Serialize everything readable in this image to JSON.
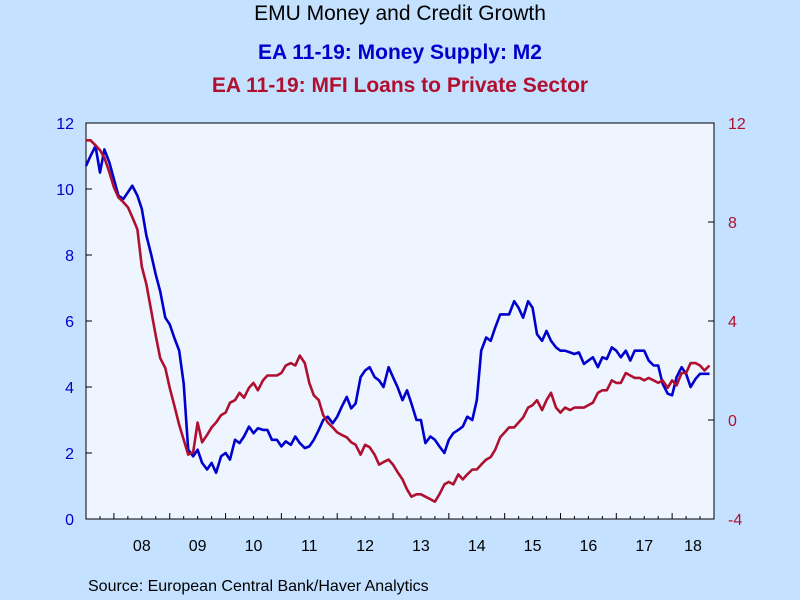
{
  "chart_data": {
    "type": "line",
    "title": "EMU Money and Credit Growth",
    "source": "Source:  European Central Bank/Haver Analytics",
    "colors": {
      "series1": "#0000CC",
      "series2": "#B01030",
      "background": "#C4E1FF",
      "plot_background": "#EEF5FF"
    },
    "x_ticks": [
      "08",
      "09",
      "10",
      "11",
      "12",
      "13",
      "14",
      "15",
      "16",
      "17",
      "18"
    ],
    "x_range": [
      2007.5,
      2018.75
    ],
    "y_left": {
      "ticks": [
        "0",
        "2",
        "4",
        "6",
        "8",
        "10",
        "12"
      ],
      "range": [
        0,
        12
      ]
    },
    "y_right": {
      "ticks": [
        "-4",
        "0",
        "4",
        "8",
        "12"
      ],
      "range": [
        -4,
        12
      ]
    },
    "grid": false,
    "series": [
      {
        "name": "EA 11-19: Money Supply: M2",
        "axis": "left",
        "points": [
          [
            2007.5,
            10.7
          ],
          [
            2007.58,
            11.0
          ],
          [
            2007.67,
            11.3
          ],
          [
            2007.75,
            10.5
          ],
          [
            2007.83,
            11.2
          ],
          [
            2007.92,
            10.8
          ],
          [
            2008.0,
            10.3
          ],
          [
            2008.08,
            9.8
          ],
          [
            2008.17,
            9.7
          ],
          [
            2008.25,
            9.9
          ],
          [
            2008.33,
            10.1
          ],
          [
            2008.42,
            9.8
          ],
          [
            2008.5,
            9.4
          ],
          [
            2008.58,
            8.6
          ],
          [
            2008.67,
            8.0
          ],
          [
            2008.75,
            7.4
          ],
          [
            2008.83,
            6.9
          ],
          [
            2008.92,
            6.1
          ],
          [
            2009.0,
            5.9
          ],
          [
            2009.08,
            5.5
          ],
          [
            2009.17,
            5.1
          ],
          [
            2009.25,
            4.1
          ],
          [
            2009.33,
            2.1
          ],
          [
            2009.42,
            1.9
          ],
          [
            2009.5,
            2.1
          ],
          [
            2009.58,
            1.7
          ],
          [
            2009.67,
            1.5
          ],
          [
            2009.75,
            1.7
          ],
          [
            2009.83,
            1.4
          ],
          [
            2009.92,
            1.9
          ],
          [
            2010.0,
            2.0
          ],
          [
            2010.08,
            1.8
          ],
          [
            2010.17,
            2.4
          ],
          [
            2010.25,
            2.3
          ],
          [
            2010.33,
            2.5
          ],
          [
            2010.42,
            2.8
          ],
          [
            2010.5,
            2.6
          ],
          [
            2010.58,
            2.75
          ],
          [
            2010.67,
            2.7
          ],
          [
            2010.75,
            2.7
          ],
          [
            2010.83,
            2.4
          ],
          [
            2010.92,
            2.4
          ],
          [
            2011.0,
            2.2
          ],
          [
            2011.08,
            2.35
          ],
          [
            2011.17,
            2.25
          ],
          [
            2011.25,
            2.5
          ],
          [
            2011.33,
            2.3
          ],
          [
            2011.42,
            2.15
          ],
          [
            2011.5,
            2.2
          ],
          [
            2011.58,
            2.4
          ],
          [
            2011.67,
            2.7
          ],
          [
            2011.75,
            3.0
          ],
          [
            2011.83,
            3.1
          ],
          [
            2011.92,
            2.9
          ],
          [
            2012.0,
            3.1
          ],
          [
            2012.08,
            3.4
          ],
          [
            2012.17,
            3.7
          ],
          [
            2012.25,
            3.35
          ],
          [
            2012.33,
            3.5
          ],
          [
            2012.42,
            4.3
          ],
          [
            2012.5,
            4.5
          ],
          [
            2012.58,
            4.6
          ],
          [
            2012.67,
            4.3
          ],
          [
            2012.75,
            4.2
          ],
          [
            2012.83,
            4.0
          ],
          [
            2012.92,
            4.6
          ],
          [
            2013.0,
            4.3
          ],
          [
            2013.08,
            4.0
          ],
          [
            2013.17,
            3.6
          ],
          [
            2013.25,
            3.9
          ],
          [
            2013.33,
            3.5
          ],
          [
            2013.42,
            3.0
          ],
          [
            2013.5,
            3.0
          ],
          [
            2013.58,
            2.3
          ],
          [
            2013.67,
            2.5
          ],
          [
            2013.75,
            2.4
          ],
          [
            2013.83,
            2.2
          ],
          [
            2013.92,
            2.0
          ],
          [
            2014.0,
            2.4
          ],
          [
            2014.08,
            2.6
          ],
          [
            2014.17,
            2.7
          ],
          [
            2014.25,
            2.8
          ],
          [
            2014.33,
            3.1
          ],
          [
            2014.42,
            3.0
          ],
          [
            2014.5,
            3.6
          ],
          [
            2014.58,
            5.1
          ],
          [
            2014.67,
            5.5
          ],
          [
            2014.75,
            5.4
          ],
          [
            2014.83,
            5.8
          ],
          [
            2014.92,
            6.2
          ],
          [
            2015.0,
            6.2
          ],
          [
            2015.08,
            6.2
          ],
          [
            2015.17,
            6.6
          ],
          [
            2015.25,
            6.4
          ],
          [
            2015.33,
            6.1
          ],
          [
            2015.42,
            6.6
          ],
          [
            2015.5,
            6.4
          ],
          [
            2015.58,
            5.6
          ],
          [
            2015.67,
            5.4
          ],
          [
            2015.75,
            5.7
          ],
          [
            2015.83,
            5.4
          ],
          [
            2015.92,
            5.2
          ],
          [
            2016.0,
            5.1
          ],
          [
            2016.08,
            5.1
          ],
          [
            2016.17,
            5.05
          ],
          [
            2016.25,
            5.0
          ],
          [
            2016.33,
            5.05
          ],
          [
            2016.42,
            4.7
          ],
          [
            2016.5,
            4.8
          ],
          [
            2016.58,
            4.9
          ],
          [
            2016.67,
            4.6
          ],
          [
            2016.75,
            4.9
          ],
          [
            2016.83,
            4.85
          ],
          [
            2016.92,
            5.2
          ],
          [
            2017.0,
            5.1
          ],
          [
            2017.08,
            4.9
          ],
          [
            2017.17,
            5.1
          ],
          [
            2017.25,
            4.8
          ],
          [
            2017.33,
            5.1
          ],
          [
            2017.42,
            5.1
          ],
          [
            2017.5,
            5.1
          ],
          [
            2017.58,
            4.8
          ],
          [
            2017.67,
            4.65
          ],
          [
            2017.75,
            4.65
          ],
          [
            2017.83,
            4.1
          ],
          [
            2017.92,
            3.8
          ],
          [
            2018.0,
            3.75
          ],
          [
            2018.08,
            4.3
          ],
          [
            2018.17,
            4.6
          ],
          [
            2018.25,
            4.4
          ],
          [
            2018.33,
            4.0
          ],
          [
            2018.42,
            4.25
          ],
          [
            2018.5,
            4.4
          ],
          [
            2018.58,
            4.4
          ],
          [
            2018.67,
            4.4
          ]
        ]
      },
      {
        "name": "EA 11-19: MFI Loans to Private Sector",
        "axis": "right",
        "points": [
          [
            2007.5,
            11.3
          ],
          [
            2007.58,
            11.3
          ],
          [
            2007.67,
            11.1
          ],
          [
            2007.75,
            10.9
          ],
          [
            2007.83,
            10.6
          ],
          [
            2007.92,
            10.0
          ],
          [
            2008.0,
            9.4
          ],
          [
            2008.08,
            9.0
          ],
          [
            2008.17,
            8.8
          ],
          [
            2008.25,
            8.6
          ],
          [
            2008.33,
            8.2
          ],
          [
            2008.42,
            7.7
          ],
          [
            2008.5,
            6.2
          ],
          [
            2008.58,
            5.5
          ],
          [
            2008.67,
            4.4
          ],
          [
            2008.75,
            3.4
          ],
          [
            2008.83,
            2.5
          ],
          [
            2008.92,
            2.1
          ],
          [
            2009.0,
            1.3
          ],
          [
            2009.08,
            0.6
          ],
          [
            2009.17,
            -0.2
          ],
          [
            2009.25,
            -0.8
          ],
          [
            2009.33,
            -1.4
          ],
          [
            2009.42,
            -1.3
          ],
          [
            2009.5,
            -0.1
          ],
          [
            2009.58,
            -0.9
          ],
          [
            2009.67,
            -0.6
          ],
          [
            2009.75,
            -0.3
          ],
          [
            2009.83,
            -0.1
          ],
          [
            2009.92,
            0.2
          ],
          [
            2010.0,
            0.3
          ],
          [
            2010.08,
            0.7
          ],
          [
            2010.17,
            0.8
          ],
          [
            2010.25,
            1.1
          ],
          [
            2010.33,
            0.9
          ],
          [
            2010.42,
            1.3
          ],
          [
            2010.5,
            1.5
          ],
          [
            2010.58,
            1.2
          ],
          [
            2010.67,
            1.6
          ],
          [
            2010.75,
            1.8
          ],
          [
            2010.83,
            1.8
          ],
          [
            2010.92,
            1.8
          ],
          [
            2011.0,
            1.9
          ],
          [
            2011.08,
            2.2
          ],
          [
            2011.17,
            2.3
          ],
          [
            2011.25,
            2.2
          ],
          [
            2011.33,
            2.6
          ],
          [
            2011.42,
            2.3
          ],
          [
            2011.5,
            1.5
          ],
          [
            2011.58,
            1.0
          ],
          [
            2011.67,
            0.8
          ],
          [
            2011.75,
            0.2
          ],
          [
            2011.83,
            -0.1
          ],
          [
            2011.92,
            -0.3
          ],
          [
            2012.0,
            -0.5
          ],
          [
            2012.08,
            -0.6
          ],
          [
            2012.17,
            -0.7
          ],
          [
            2012.25,
            -0.9
          ],
          [
            2012.33,
            -1.0
          ],
          [
            2012.42,
            -1.4
          ],
          [
            2012.5,
            -1.0
          ],
          [
            2012.58,
            -1.1
          ],
          [
            2012.67,
            -1.4
          ],
          [
            2012.75,
            -1.8
          ],
          [
            2012.83,
            -1.7
          ],
          [
            2012.92,
            -1.6
          ],
          [
            2013.0,
            -1.8
          ],
          [
            2013.08,
            -2.1
          ],
          [
            2013.17,
            -2.4
          ],
          [
            2013.25,
            -2.8
          ],
          [
            2013.33,
            -3.1
          ],
          [
            2013.42,
            -3.0
          ],
          [
            2013.5,
            -3.0
          ],
          [
            2013.58,
            -3.1
          ],
          [
            2013.67,
            -3.2
          ],
          [
            2013.75,
            -3.3
          ],
          [
            2013.83,
            -3.0
          ],
          [
            2013.92,
            -2.6
          ],
          [
            2014.0,
            -2.5
          ],
          [
            2014.08,
            -2.6
          ],
          [
            2014.17,
            -2.2
          ],
          [
            2014.25,
            -2.4
          ],
          [
            2014.33,
            -2.2
          ],
          [
            2014.42,
            -2.0
          ],
          [
            2014.5,
            -2.0
          ],
          [
            2014.58,
            -1.8
          ],
          [
            2014.67,
            -1.6
          ],
          [
            2014.75,
            -1.5
          ],
          [
            2014.83,
            -1.2
          ],
          [
            2014.92,
            -0.7
          ],
          [
            2015.0,
            -0.5
          ],
          [
            2015.08,
            -0.3
          ],
          [
            2015.17,
            -0.3
          ],
          [
            2015.25,
            -0.1
          ],
          [
            2015.33,
            0.1
          ],
          [
            2015.42,
            0.5
          ],
          [
            2015.5,
            0.6
          ],
          [
            2015.58,
            0.8
          ],
          [
            2015.67,
            0.4
          ],
          [
            2015.75,
            0.8
          ],
          [
            2015.83,
            1.1
          ],
          [
            2015.92,
            0.5
          ],
          [
            2016.0,
            0.3
          ],
          [
            2016.08,
            0.5
          ],
          [
            2016.17,
            0.4
          ],
          [
            2016.25,
            0.5
          ],
          [
            2016.33,
            0.5
          ],
          [
            2016.42,
            0.5
          ],
          [
            2016.5,
            0.6
          ],
          [
            2016.58,
            0.7
          ],
          [
            2016.67,
            1.1
          ],
          [
            2016.75,
            1.2
          ],
          [
            2016.83,
            1.2
          ],
          [
            2016.92,
            1.6
          ],
          [
            2017.0,
            1.5
          ],
          [
            2017.08,
            1.5
          ],
          [
            2017.17,
            1.9
          ],
          [
            2017.25,
            1.8
          ],
          [
            2017.33,
            1.7
          ],
          [
            2017.42,
            1.7
          ],
          [
            2017.5,
            1.6
          ],
          [
            2017.58,
            1.7
          ],
          [
            2017.67,
            1.6
          ],
          [
            2017.75,
            1.5
          ],
          [
            2017.83,
            1.6
          ],
          [
            2017.92,
            1.3
          ],
          [
            2018.0,
            1.6
          ],
          [
            2018.08,
            1.4
          ],
          [
            2018.17,
            1.9
          ],
          [
            2018.25,
            1.9
          ],
          [
            2018.33,
            2.3
          ],
          [
            2018.42,
            2.3
          ],
          [
            2018.5,
            2.2
          ],
          [
            2018.58,
            2.0
          ],
          [
            2018.67,
            2.2
          ]
        ]
      }
    ]
  }
}
